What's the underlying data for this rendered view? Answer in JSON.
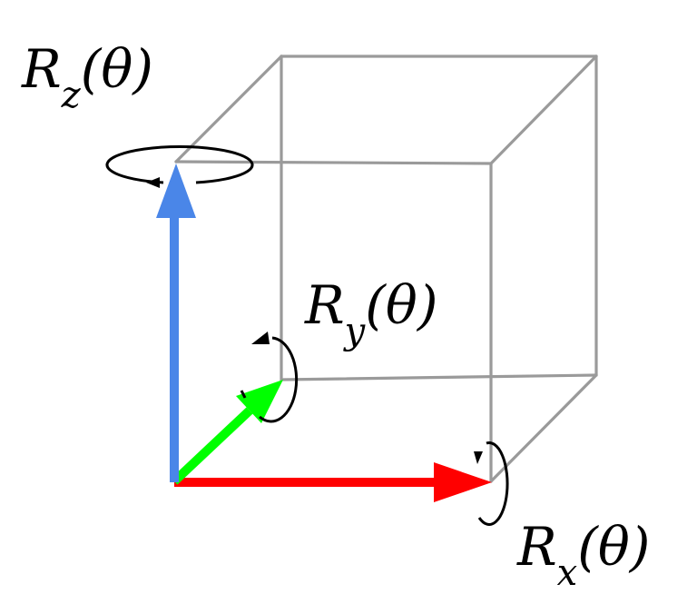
{
  "diagram": {
    "labels": {
      "rz": {
        "main": "R",
        "sub": "z",
        "arg": "(θ)"
      },
      "ry": {
        "main": "R",
        "sub": "y",
        "arg": "(θ)"
      },
      "rx": {
        "main": "R",
        "sub": "x",
        "arg": "(θ)"
      }
    },
    "colors": {
      "cube": "#9a9a9a",
      "z_axis": "#4a86e8",
      "y_axis": "#00ff00",
      "x_axis": "#ff0000",
      "rotation": "#000000"
    }
  }
}
